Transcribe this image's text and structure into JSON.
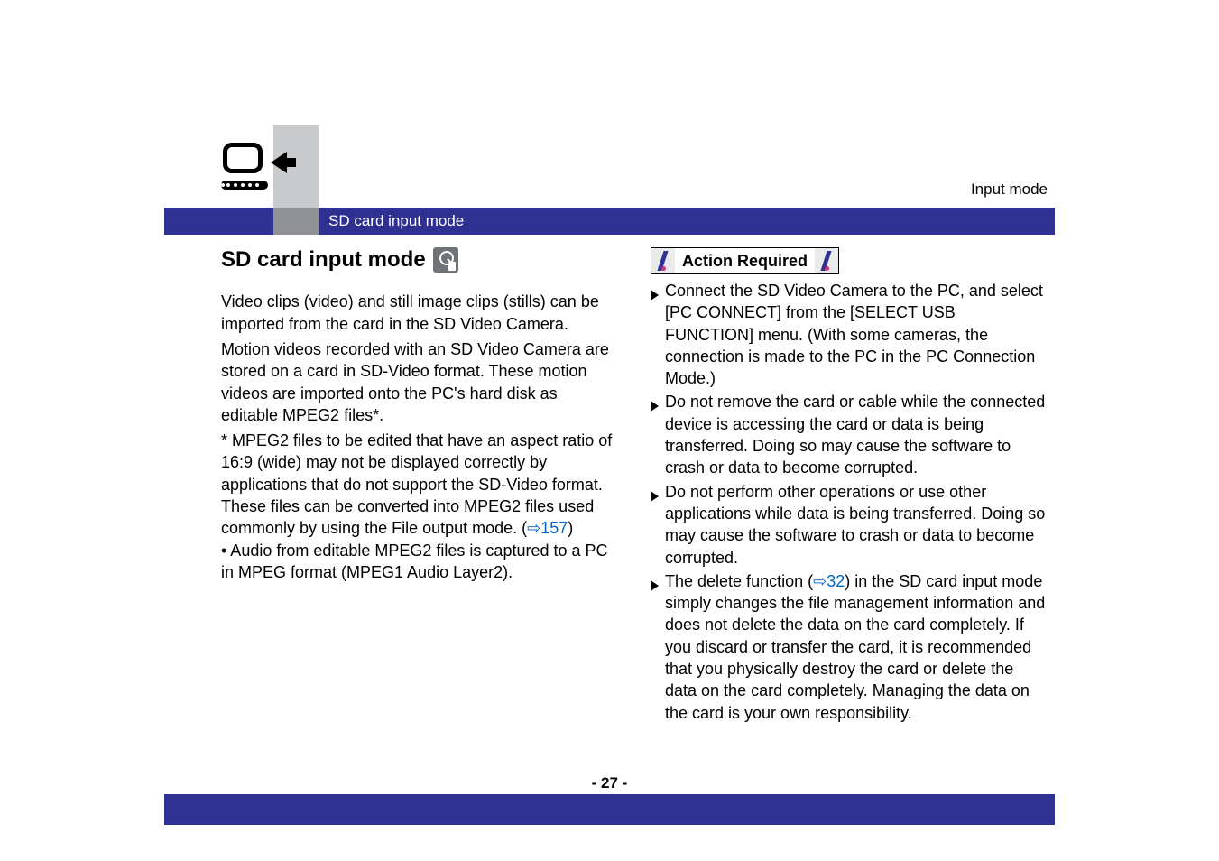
{
  "colors": {
    "ribbon": "#2e3192",
    "ribbon_grey": "#8f9194",
    "grey_block": "#c9cacb",
    "link": "#0066cc",
    "badge": "#6f7277",
    "flag_bar": "#2e3192",
    "flag_dot": "#ce2f7a"
  },
  "header": {
    "breadcrumb": "Input mode",
    "ribbon_label": "SD card input mode"
  },
  "left": {
    "title": "SD card input mode",
    "para1": "Video clips (video) and still image clips (stills) can be imported from the card in the SD Video Camera.",
    "para2": "Motion videos recorded with an SD Video Camera are stored on a card in SD-Video format. These motion videos are imported onto the PC's hard disk as editable MPEG2 files*.",
    "note1_a": "* MPEG2 files to be edited that have an aspect ratio of 16:9 (wide) may not be displayed correctly by applications that do not support the SD-Video format. These files can be converted into MPEG2 files used commonly by using the File output mode. (",
    "note1_link": "⇨157",
    "note1_b": ")",
    "note2": "• Audio from editable MPEG2 files is captured to a PC in MPEG format (MPEG1 Audio Layer2)."
  },
  "right": {
    "action_label": "Action Required",
    "items": [
      {
        "text_a": "Connect the SD Video Camera to the PC, and select [PC CONNECT] from the [SELECT USB FUNCTION] menu. (With some cameras, the connection is made to the PC in the PC Connection Mode.)",
        "link": "",
        "text_b": ""
      },
      {
        "text_a": "Do not remove the card or cable while the connected device is accessing the card or data is being transferred. Doing so may cause the software to crash or data to become corrupted.",
        "link": "",
        "text_b": ""
      },
      {
        "text_a": "Do not perform other operations or use other applications while data is being transferred. Doing so may cause the software to crash or data to become corrupted.",
        "link": "",
        "text_b": ""
      },
      {
        "text_a": "The delete function (",
        "link": "⇨32",
        "text_b": ") in the SD card input mode simply changes the file management information and does not delete the data on the card completely. If you discard or transfer the card, it is recommended that you physically destroy the card or delete the data on the card completely. Managing the data on the card is your own responsibility."
      }
    ]
  },
  "footer": {
    "page": "- 27 -"
  }
}
